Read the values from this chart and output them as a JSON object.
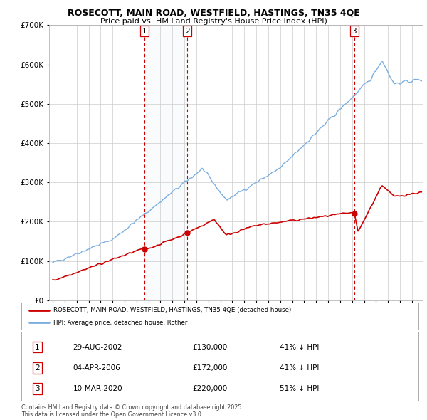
{
  "title": "ROSECOTT, MAIN ROAD, WESTFIELD, HASTINGS, TN35 4QE",
  "subtitle": "Price paid vs. HM Land Registry's House Price Index (HPI)",
  "sale_dates_float": [
    2002.66,
    2006.25,
    2020.19
  ],
  "sale_prices": [
    130000,
    172000,
    220000
  ],
  "sale_labels": [
    "1",
    "2",
    "3"
  ],
  "hpi_color": "#7aafe0",
  "hpi_fill_color": "#dce8f5",
  "price_color": "#cc0000",
  "vline_color": "#cc0000",
  "grid_color": "#cccccc",
  "background_color": "#ffffff",
  "ylim_max": 700000,
  "xlim_start": 1994.7,
  "xlim_end": 2025.9,
  "legend_entries": [
    "ROSECOTT, MAIN ROAD, WESTFIELD, HASTINGS, TN35 4QE (detached house)",
    "HPI: Average price, detached house, Rother"
  ],
  "table_rows": [
    [
      "1",
      "29-AUG-2002",
      "£130,000",
      "41% ↓ HPI"
    ],
    [
      "2",
      "04-APR-2006",
      "£172,000",
      "41% ↓ HPI"
    ],
    [
      "3",
      "10-MAR-2020",
      "£220,000",
      "51% ↓ HPI"
    ]
  ],
  "footnote": "Contains HM Land Registry data © Crown copyright and database right 2025.\nThis data is licensed under the Open Government Licence v3.0."
}
